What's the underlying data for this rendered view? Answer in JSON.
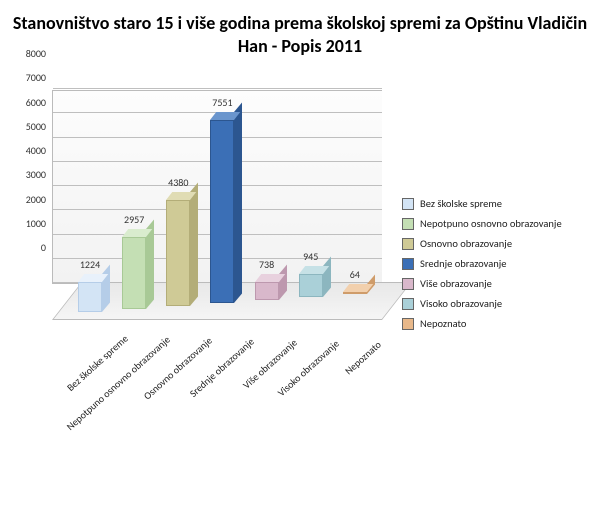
{
  "chart": {
    "type": "bar",
    "title": "Stanovništvo staro 15 i više godina prema školskoj spremi za Opštinu Vladičin Han - Popis 2011",
    "title_fontsize": 18,
    "background_color": "#ffffff",
    "grid_color": "#bfbfbf",
    "ylim": [
      0,
      8000
    ],
    "ytick_step": 1000,
    "yticks": [
      0,
      1000,
      2000,
      3000,
      4000,
      5000,
      6000,
      7000,
      8000
    ],
    "label_fontsize": 10,
    "series": [
      {
        "category": "Bez školske spreme",
        "value": 1224,
        "front": "#d3e4f5",
        "top": "#e8f1fb",
        "side": "#b5cde8",
        "legend": "Bez školske spreme"
      },
      {
        "category": "Nepotpuno osnovno obrazovanje",
        "value": 2957,
        "front": "#c4dfb4",
        "top": "#d9ecce",
        "side": "#a8c996",
        "legend": "Nepotpuno osnovno obrazovanje"
      },
      {
        "category": "Osnovno obrazovanje",
        "value": 4380,
        "front": "#cfca96",
        "top": "#e0dcb4",
        "side": "#b3ad78",
        "legend": "Osnovno obrazovanje"
      },
      {
        "category": "Srednje obrazovanje",
        "value": 7551,
        "front": "#3b6fb6",
        "top": "#6a95cd",
        "side": "#2c5690",
        "legend": "Srednje obrazovanje"
      },
      {
        "category": "Više obrazovanje",
        "value": 738,
        "front": "#d9b8cb",
        "top": "#e8d1de",
        "side": "#bd98ae",
        "legend": "Više obrazovanje"
      },
      {
        "category": "Visoko obrazovanje",
        "value": 945,
        "front": "#aad0d8",
        "top": "#c6e1e6",
        "side": "#8cb6bf",
        "legend": "Visoko obrazovanje"
      },
      {
        "category": "Nepoznato",
        "value": 64,
        "front": "#e8b88a",
        "top": "#f2d0ad",
        "side": "#cf9c6a",
        "legend": "Nepoznato"
      }
    ]
  }
}
